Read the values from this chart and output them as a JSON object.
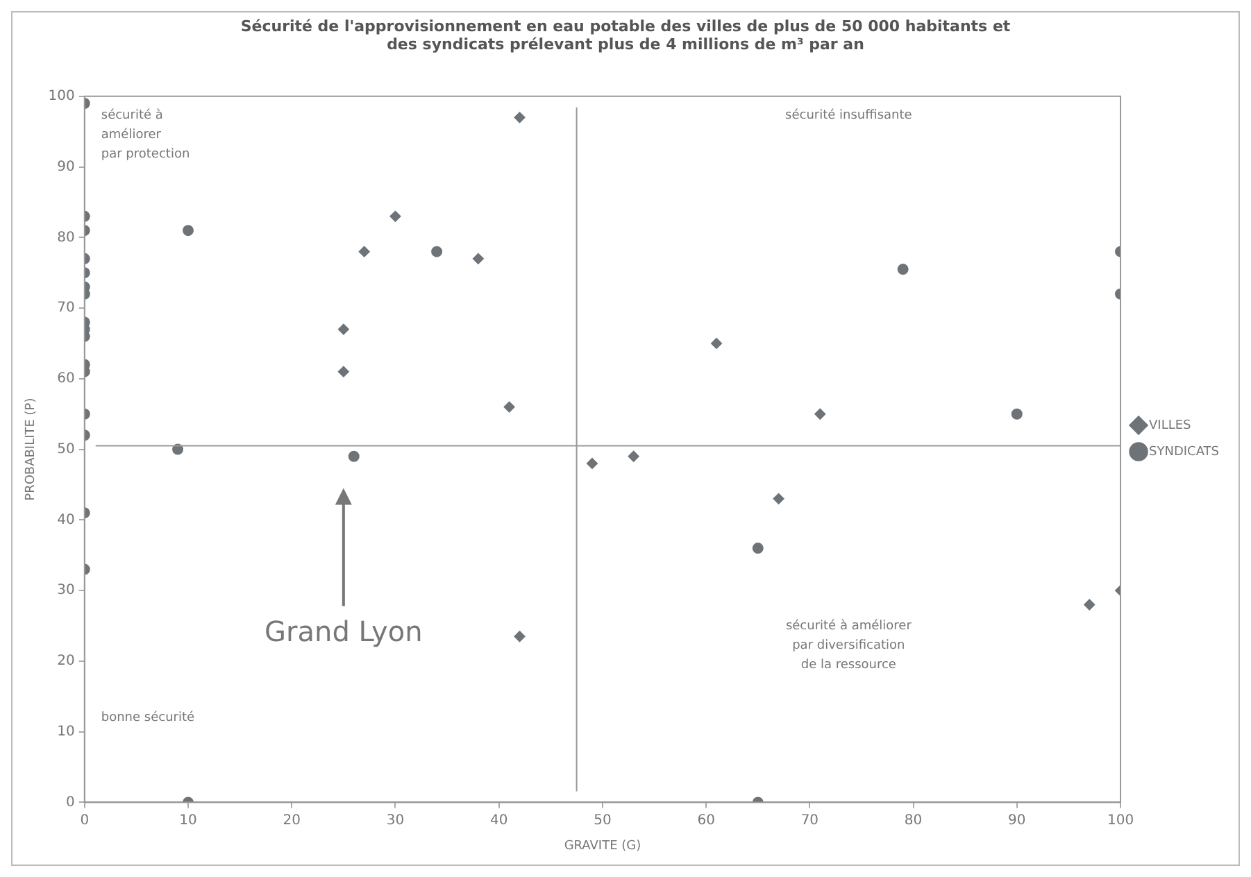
{
  "chart_data": {
    "type": "scatter",
    "title": "Sécurité de l'approvisionnement en eau potable des villes de plus de 50 000 habitants et des syndicats prélevant plus de 4 millions de m³ par an",
    "xlabel": "GRAVITE (G)",
    "ylabel": "PROBABILITE (P)",
    "xlim": [
      0,
      100
    ],
    "xticks": [
      0,
      10,
      20,
      30,
      40,
      50,
      60,
      70,
      80,
      90,
      100
    ],
    "ylim": [
      0,
      100
    ],
    "yticks": [
      0,
      10,
      20,
      30,
      40,
      50,
      60,
      70,
      80,
      90,
      100
    ],
    "grid": false,
    "legend": "right",
    "series": [
      {
        "name": "VILLES",
        "color": "#6e7378",
        "marker": "diamond",
        "x": [
          27,
          30,
          38,
          42,
          41,
          25,
          25,
          42,
          49,
          53,
          61,
          67,
          71,
          97,
          100
        ],
        "values": [
          78,
          83,
          77,
          97,
          56,
          67,
          61,
          23.5,
          48,
          49,
          65,
          43,
          55,
          28,
          30
        ]
      },
      {
        "name": "SYNDICATS",
        "color": "#6e7378",
        "marker": "circle",
        "x": [
          0,
          0,
          0,
          0,
          0,
          0,
          0,
          0,
          0,
          0,
          0,
          0,
          0,
          0,
          0,
          0,
          10,
          9,
          26,
          34,
          10,
          65,
          65,
          79,
          90,
          100,
          100
        ],
        "values": [
          99,
          83,
          81,
          77,
          75,
          73,
          72,
          68,
          67,
          66,
          62,
          61,
          55,
          52,
          41,
          33,
          81,
          50,
          49,
          78,
          0,
          36,
          0,
          75.5,
          55,
          78,
          72
        ]
      }
    ],
    "ref_lines": [
      {
        "axis": "x",
        "value": 47.5
      },
      {
        "axis": "y",
        "value": 50.5
      }
    ],
    "annotations": [
      "sécurité à\naméliorer\npar protection",
      "sécurité insuffisante",
      "bonne sécurité",
      "sécurité à améliorer\npar diversification\nde la ressource",
      "Grand Lyon"
    ]
  }
}
